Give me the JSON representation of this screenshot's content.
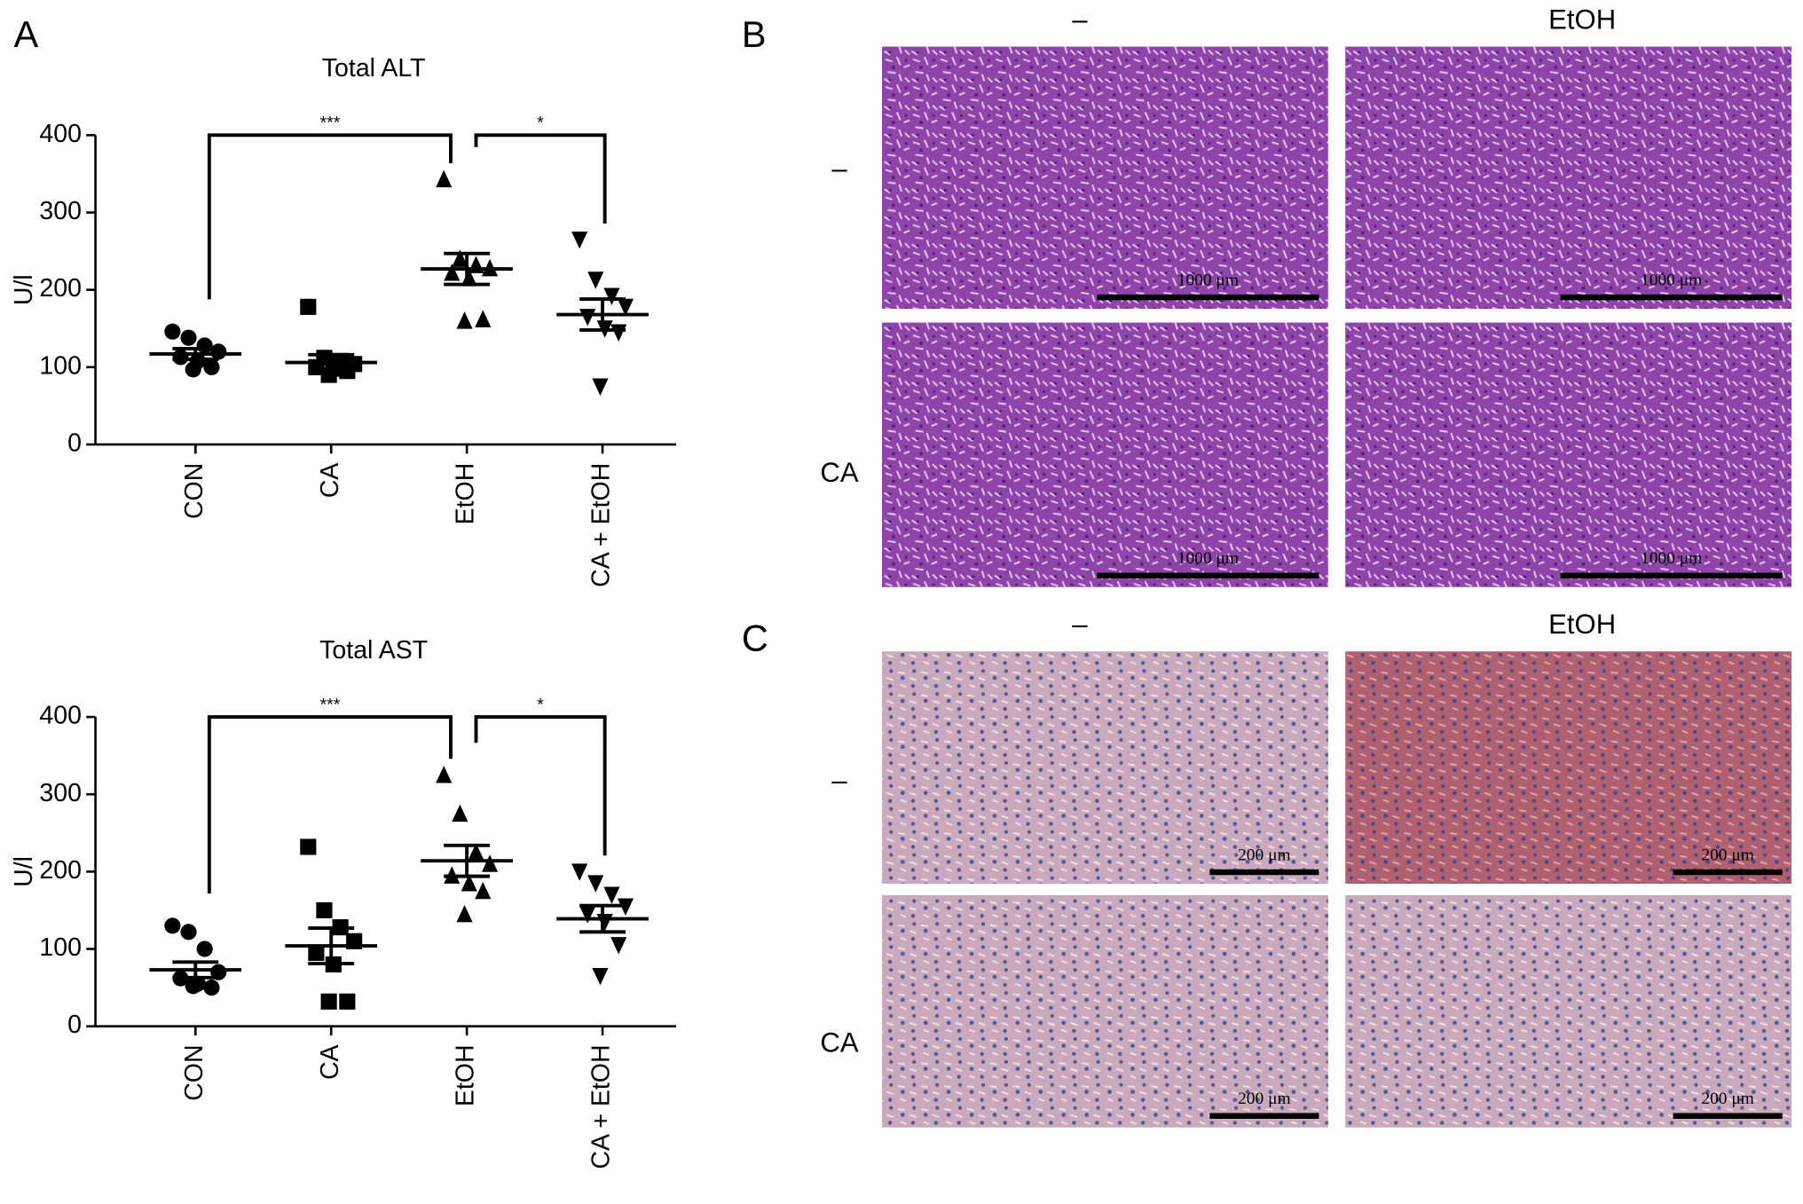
{
  "panel_labels": [
    "A",
    "B",
    "C"
  ],
  "chart_data": [
    {
      "type": "dotplot",
      "title": "Total ALT",
      "y_label": "U/l",
      "color": "#000000",
      "categories": [
        "CON",
        "CA",
        "EtOH",
        "CA + EtOH"
      ],
      "groups": [
        [
          146,
          138,
          128,
          120,
          113,
          108,
          100,
          97
        ],
        [
          178,
          112,
          108,
          104,
          100,
          98,
          95,
          90
        ],
        [
          343,
          240,
          232,
          228,
          222,
          215,
          162,
          160
        ],
        [
          265,
          213,
          192,
          178,
          165,
          150,
          145,
          75
        ]
      ],
      "means": [
        117,
        106,
        227,
        168
      ],
      "sems": [
        7,
        10,
        20,
        20
      ],
      "ylim": [
        0,
        400
      ],
      "yticks": [
        0,
        100,
        200,
        300,
        400
      ],
      "significance": [
        {
          "label": "***",
          "groups": [
            "CON",
            "EtOH"
          ]
        },
        {
          "label": "*",
          "groups": [
            "EtOH",
            "CA + EtOH"
          ]
        }
      ]
    },
    {
      "type": "dotplot",
      "title": "Total AST",
      "y_label": "U/l",
      "color": "#000000",
      "categories": [
        "CON",
        "CA",
        "EtOH",
        "CA + EtOH"
      ],
      "groups": [
        [
          130,
          122,
          100,
          70,
          62,
          55,
          50,
          52
        ],
        [
          232,
          150,
          128,
          110,
          95,
          80,
          32,
          32
        ],
        [
          325,
          275,
          225,
          210,
          195,
          185,
          175,
          145
        ],
        [
          200,
          185,
          170,
          155,
          145,
          135,
          105,
          65
        ]
      ],
      "means": [
        73,
        104,
        214,
        139
      ],
      "sems": [
        10,
        23,
        20,
        17
      ],
      "ylim": [
        0,
        400
      ],
      "yticks": [
        0,
        100,
        200,
        300,
        400
      ],
      "significance": [
        {
          "label": "***",
          "groups": [
            "CON",
            "EtOH"
          ]
        },
        {
          "label": "*",
          "groups": [
            "EtOH",
            "CA + EtOH"
          ]
        }
      ]
    }
  ],
  "histology": [
    {
      "panel": "B",
      "columns": [
        "–",
        "EtOH"
      ],
      "rows": [
        "–",
        "CA"
      ],
      "scale_labels": [
        [
          "1000 μm",
          "1000 μm"
        ],
        [
          "1000 μm",
          "1000 μm"
        ]
      ]
    },
    {
      "panel": "C",
      "columns": [
        "–",
        "EtOH"
      ],
      "rows": [
        "–",
        "CA"
      ],
      "scale_labels": [
        [
          "200 μm",
          "200 μm"
        ],
        [
          "200 μm",
          "200 μm"
        ]
      ]
    }
  ]
}
